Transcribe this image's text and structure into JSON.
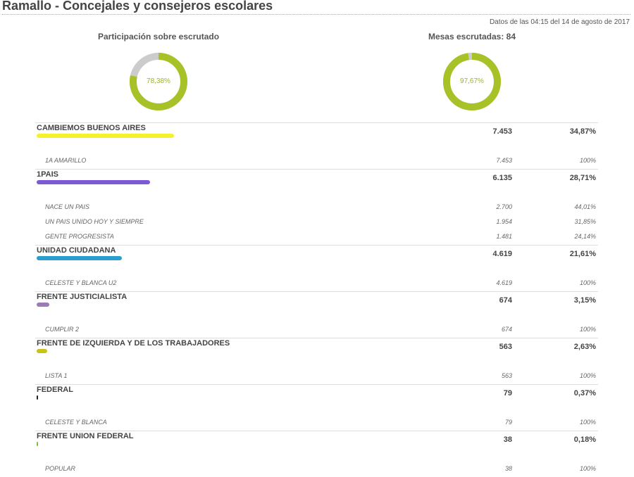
{
  "header": {
    "title": "Ramallo - Concejales y consejeros escolares",
    "updated": "Datos de las 04:15 del 14 de agosto de 2017"
  },
  "participation": {
    "label": "Participación sobre escrutado",
    "value_label": "78,38%",
    "fraction": 0.7838,
    "fill_color": "#a6c227",
    "track_color": "#cccccc"
  },
  "tables_counted": {
    "label": "Mesas escrutadas: 84",
    "value_label": "97,67%",
    "fraction": 0.9767,
    "fill_color": "#a6c227",
    "track_color": "#cccccc"
  },
  "parties": [
    {
      "name": "CAMBIEMOS BUENOS AIRES",
      "votes": "7.453",
      "pct": "34,87%",
      "share": 0.3487,
      "color": "#f5f12d",
      "lists": [
        {
          "name": "1A AMARILLO",
          "votes": "7.453",
          "pct": "100%"
        }
      ]
    },
    {
      "name": "1PAIS",
      "votes": "6.135",
      "pct": "28,71%",
      "share": 0.2871,
      "color": "#7b5ad6",
      "lists": [
        {
          "name": "NACE UN PAIS",
          "votes": "2.700",
          "pct": "44,01%"
        },
        {
          "name": "UN PAIS UNIDO HOY Y SIEMPRE",
          "votes": "1.954",
          "pct": "31,85%"
        },
        {
          "name": "GENTE PROGRESISTA",
          "votes": "1.481",
          "pct": "24,14%"
        }
      ]
    },
    {
      "name": "UNIDAD CIUDADANA",
      "votes": "4.619",
      "pct": "21,61%",
      "share": 0.2161,
      "color": "#2a9fcf",
      "lists": [
        {
          "name": "CELESTE Y BLANCA U2",
          "votes": "4.619",
          "pct": "100%"
        }
      ]
    },
    {
      "name": "FRENTE JUSTICIALISTA",
      "votes": "674",
      "pct": "3,15%",
      "share": 0.0315,
      "color": "#9b7cb6",
      "lists": [
        {
          "name": "CUMPLIR 2",
          "votes": "674",
          "pct": "100%"
        }
      ]
    },
    {
      "name": "FRENTE DE IZQUIERDA Y DE LOS TRABAJADORES",
      "votes": "563",
      "pct": "2,63%",
      "share": 0.0263,
      "color": "#c9c21a",
      "lists": [
        {
          "name": "LISTA 1",
          "votes": "563",
          "pct": "100%"
        }
      ]
    },
    {
      "name": "FEDERAL",
      "votes": "79",
      "pct": "0,37%",
      "share": 0.0037,
      "color": "#222222",
      "lists": [
        {
          "name": "CELESTE Y BLANCA",
          "votes": "79",
          "pct": "100%"
        }
      ]
    },
    {
      "name": "FRENTE UNION FEDERAL",
      "votes": "38",
      "pct": "0,18%",
      "share": 0.0018,
      "color": "#7fbf3f",
      "lists": [
        {
          "name": "POPULAR",
          "votes": "38",
          "pct": "100%"
        }
      ]
    }
  ]
}
